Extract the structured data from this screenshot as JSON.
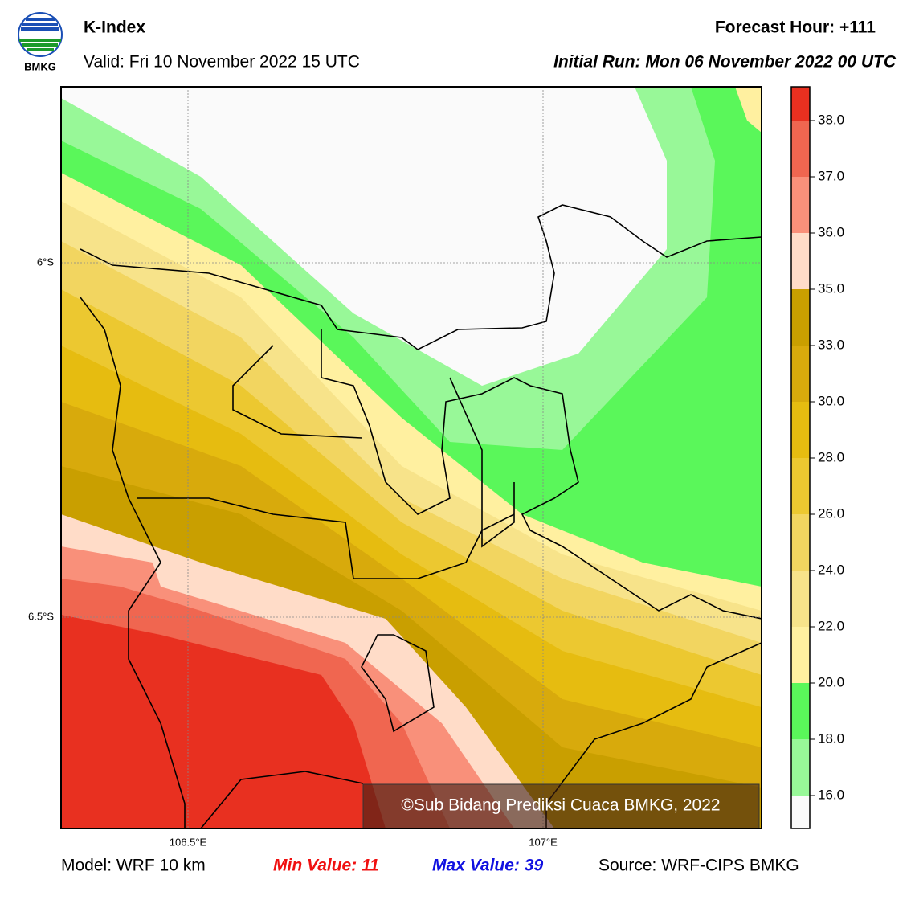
{
  "header": {
    "logo_text": "BMKG",
    "title": "K-Index",
    "valid": "Valid: Fri 10 November 2022 15 UTC",
    "forecast_hour": "Forecast Hour: +111",
    "initial_run": "Initial Run: Mon 06 November 2022 00 UTC"
  },
  "map": {
    "lat_labels": [
      "6°S",
      "6.5°S"
    ],
    "lon_labels": [
      "106.5°E",
      "107°E"
    ],
    "watermark": "©Sub Bidang Prediksi Cuaca BMKG, 2022"
  },
  "colorbar": {
    "ticks": [
      "16.0",
      "18.0",
      "20.0",
      "22.0",
      "24.0",
      "26.0",
      "28.0",
      "30.0",
      "33.0",
      "35.0",
      "36.0",
      "37.0",
      "38.0"
    ],
    "colors": [
      "#fafafa",
      "#98f898",
      "#5af75a",
      "#fff0a0",
      "#f7e38a",
      "#f2d560",
      "#ecc830",
      "#e6bc10",
      "#d8aa0c",
      "#c99f00",
      "#ffdcc8",
      "#f9907a",
      "#f06650",
      "#e83020"
    ]
  },
  "footer": {
    "model": "Model: WRF 10 km",
    "min": "Min Value: 11",
    "max": "Max Value: 39",
    "source": "Source: WRF-CIPS BMKG"
  }
}
